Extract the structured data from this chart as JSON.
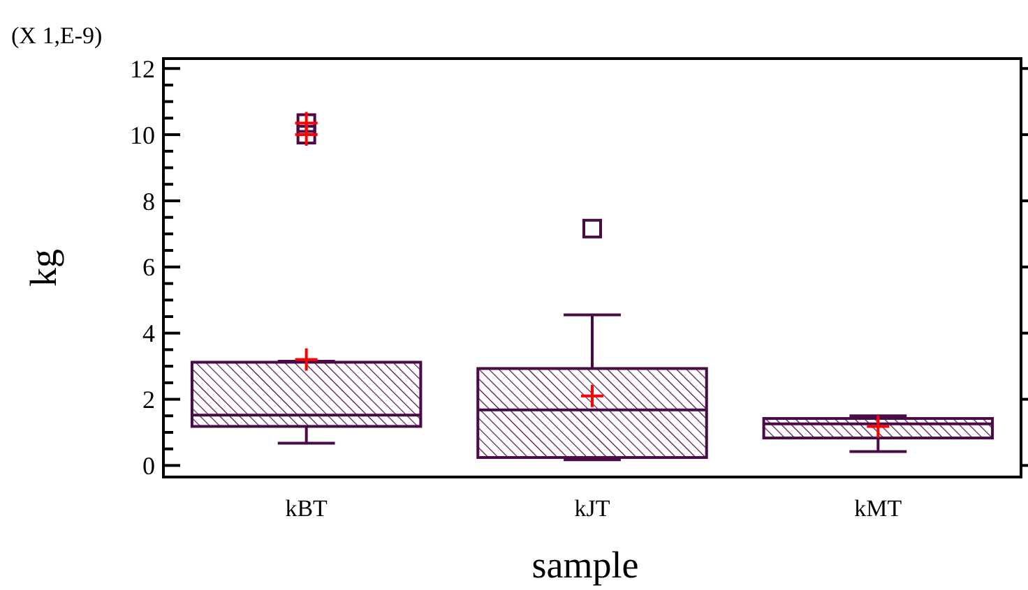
{
  "chart_data": {
    "type": "box",
    "xlabel": "sample",
    "ylabel": "kg",
    "annotations": [
      "(X 1,E-9)"
    ],
    "categories": [
      "kBT",
      "kJT",
      "kMT"
    ],
    "series": [
      {
        "color": "#4a0a48",
        "boxes": [
          {
            "low": 0.67,
            "q1": 1.18,
            "median": 1.52,
            "q3": 3.12,
            "high": 3.15,
            "mean": 3.2,
            "outliers": [
              10.0,
              10.35
            ]
          },
          {
            "low": 0.17,
            "q1": 0.24,
            "median": 1.68,
            "q3": 2.93,
            "high": 4.55,
            "mean": 2.1,
            "outliers": [
              7.16
            ]
          },
          {
            "low": 0.42,
            "q1": 0.83,
            "median": 1.26,
            "q3": 1.42,
            "high": 1.5,
            "mean": 1.18
          }
        ]
      }
    ],
    "ylim": [
      -0.35,
      12.3
    ],
    "yticks": [
      0,
      {
        "value": 0.5,
        "label": null
      },
      2,
      {
        "value": 1,
        "label": null
      },
      {
        "value": 1.5,
        "label": null
      },
      {
        "value": 2.5,
        "label": null
      },
      {
        "value": 3,
        "label": null
      },
      {
        "value": 3.5,
        "label": null
      },
      4,
      {
        "value": 4.5,
        "label": null
      },
      {
        "value": 5,
        "label": null
      },
      {
        "value": 5.5,
        "label": null
      },
      6,
      {
        "value": 6.5,
        "label": null
      },
      {
        "value": 7,
        "label": null
      },
      {
        "value": 7.5,
        "label": null
      },
      8,
      {
        "value": 8.5,
        "label": null
      },
      {
        "value": 9,
        "label": null
      },
      {
        "value": 9.5,
        "label": null
      },
      10,
      {
        "value": 10.5,
        "label": null
      },
      {
        "value": 11,
        "label": null
      },
      {
        "value": 11.5,
        "label": null
      },
      12
    ],
    "grid": false
  }
}
